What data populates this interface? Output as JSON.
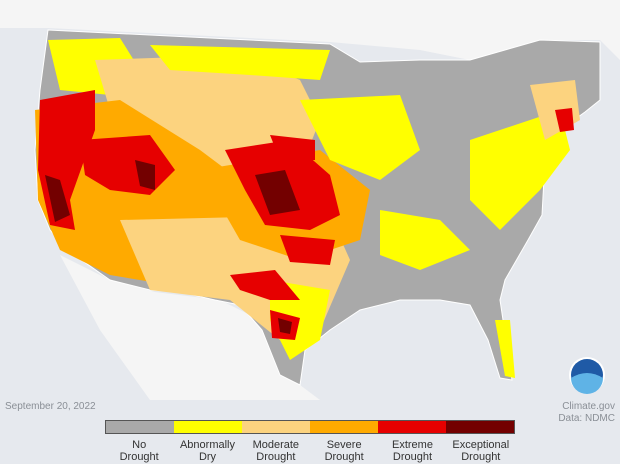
{
  "map": {
    "date": "September 20, 2022",
    "credit": "Climate.gov",
    "source": "Data: NDMC",
    "legend": [
      {
        "label": "No Drought",
        "color": "#a9a9a9"
      },
      {
        "label": "Abnormally Dry",
        "color": "#ffff00"
      },
      {
        "label": "Moderate Drought",
        "color": "#fcd37f"
      },
      {
        "label": "Severe Drought",
        "color": "#ffaa00"
      },
      {
        "label": "Extreme Drought",
        "color": "#e60000"
      },
      {
        "label": "Exceptional Drought",
        "color": "#730000"
      }
    ]
  }
}
